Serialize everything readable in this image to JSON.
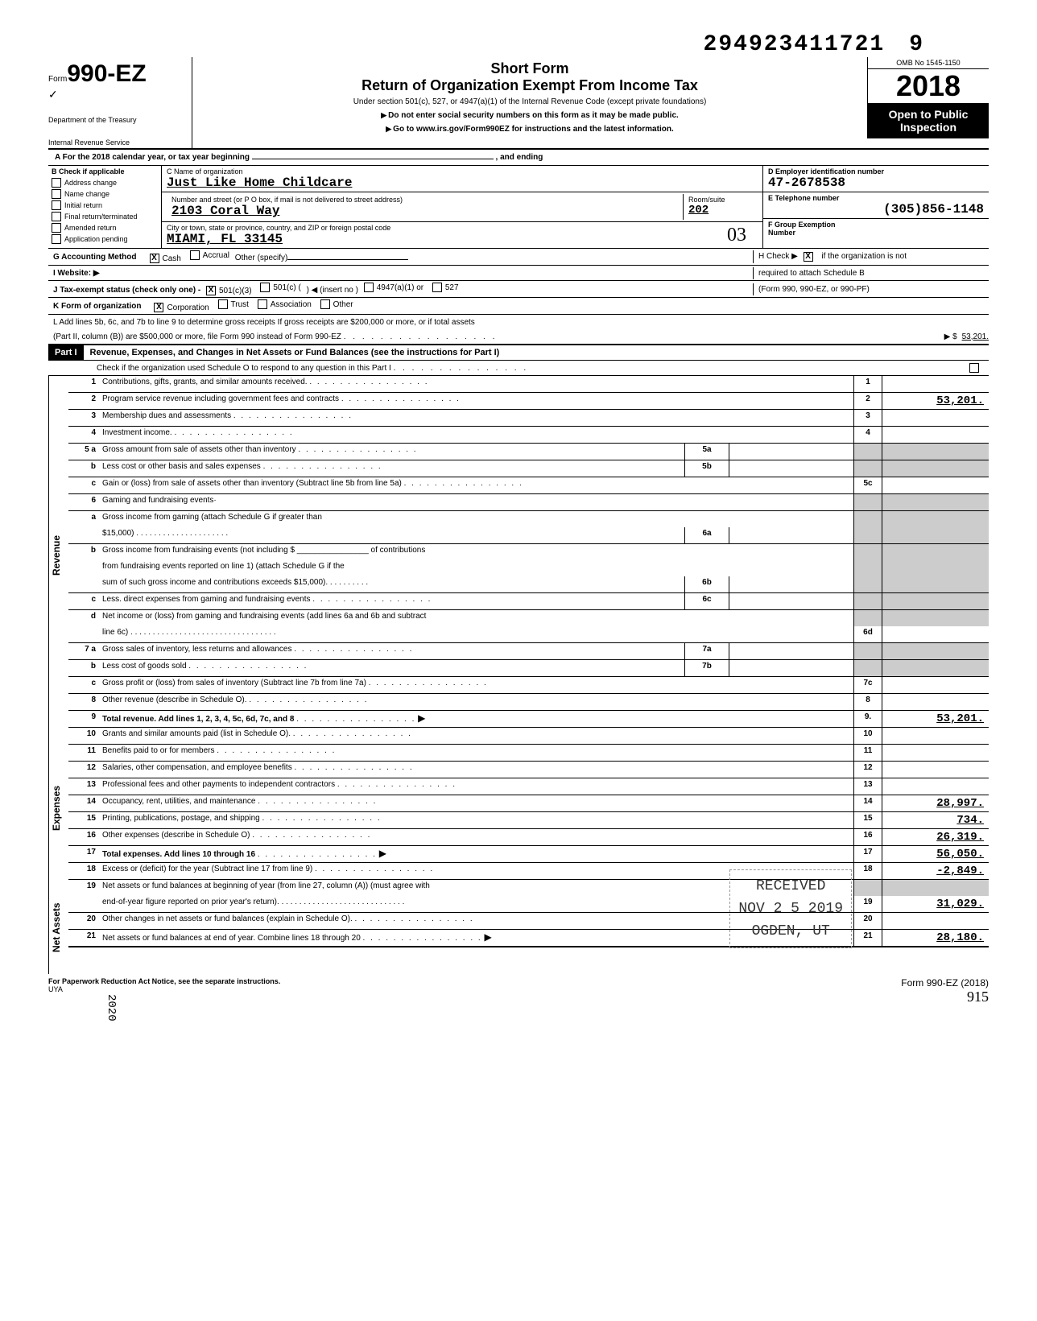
{
  "barcode": "294923411721",
  "barcode_suffix": "9",
  "form": {
    "prefix": "Form",
    "number": "990-EZ",
    "dept1": "Department of the Treasury",
    "dept2": "Internal Revenue Service"
  },
  "title": {
    "short": "Short Form",
    "main": "Return of Organization Exempt From Income Tax",
    "sub1": "Under section 501(c), 527, or 4947(a)(1) of the Internal Revenue Code (except private foundations)",
    "sub2": "Do not enter social security numbers on this form as it may be made public.",
    "sub3": "Go to www.irs.gov/Form990EZ for instructions and the latest information."
  },
  "omb": "OMB No 1545-1150",
  "year": "2018",
  "open_public1": "Open to Public",
  "open_public2": "Inspection",
  "rowA": {
    "label": "A For the 2018 calendar year, or tax year beginning",
    "and": ", and ending"
  },
  "colB": {
    "hdr": "B Check if applicable",
    "items": [
      "Address change",
      "Name change",
      "Initial return",
      "Final return/terminated",
      "Amended return",
      "Application pending"
    ]
  },
  "colC": {
    "name_label": "C  Name of organization",
    "name_value": "Just Like Home Childcare",
    "addr_label": "Number and street (or P O  box, if mail is not delivered to street address)",
    "addr_value": "2103 Coral Way",
    "room_label": "Room/suite",
    "room_value": "202",
    "city_label": "City or town, state or province, country, and ZIP or foreign postal code",
    "city_value": "MIAMI, FL 33145"
  },
  "colD": {
    "label": "D Employer identification number",
    "value": "47-2678538"
  },
  "colE": {
    "label": "E Telephone number",
    "value": "(305)856-1148"
  },
  "colF": {
    "label": "F Group Exemption",
    "label2": "Number"
  },
  "handwritten_03": "03",
  "rowG": {
    "label": "G Accounting Method",
    "cash": "Cash",
    "accrual": "Accrual",
    "other": "Other (specify)"
  },
  "rowH": {
    "label1": "H Check ▶",
    "label2": "if the organization is not",
    "label3": "required to attach Schedule B",
    "label4": "(Form 990, 990-EZ, or 990-PF)"
  },
  "rowI": {
    "label": "I  Website: ▶"
  },
  "rowJ": {
    "label": "J Tax-exempt status (check only one) -",
    "opt1": "501(c)(3)",
    "opt2": "501(c) (",
    "insert": ") ◀ (insert no )",
    "opt3": "4947(a)(1) or",
    "opt4": "527"
  },
  "rowK": {
    "label": "K Form of organization",
    "corp": "Corporation",
    "trust": "Trust",
    "assoc": "Association",
    "other": "Other"
  },
  "rowL": {
    "line1": "L Add lines 5b, 6c, and 7b to line 9 to determine gross receipts  If gross receipts are $200,000 or more, or if total assets",
    "line2": "(Part II, column (B)) are $500,000 or more, file Form 990 instead of Form 990-EZ",
    "dollar": "▶   $",
    "value": "53,201."
  },
  "part1": {
    "hdr": "Part I",
    "title": "Revenue, Expenses, and Changes in Net Assets or Fund Balances (see the instructions for Part I)",
    "check": "Check if the organization used Schedule O to respond to any question in this Part I"
  },
  "side_labels": {
    "revenue": "Revenue",
    "expenses": "Expenses",
    "netassets": "Net Assets"
  },
  "lines": {
    "l1": {
      "n": "1",
      "d": "Contributions, gifts, grants, and similar amounts received.",
      "box": "1",
      "v": ""
    },
    "l2": {
      "n": "2",
      "d": "Program service revenue including government fees and contracts",
      "box": "2",
      "v": "53,201."
    },
    "l3": {
      "n": "3",
      "d": "Membership dues and assessments",
      "box": "3",
      "v": ""
    },
    "l4": {
      "n": "4",
      "d": "Investment income.",
      "box": "4",
      "v": ""
    },
    "l5a": {
      "n": "5 a",
      "d": "Gross amount from sale of assets other than inventory",
      "ib": "5a"
    },
    "l5b": {
      "n": "b",
      "d": "Less  cost or other basis and sales expenses",
      "ib": "5b"
    },
    "l5c": {
      "n": "c",
      "d": "Gain or (loss) from sale of assets other than inventory (Subtract line 5b from line 5a)",
      "box": "5c",
      "v": ""
    },
    "l6": {
      "n": "6",
      "d": "Gaming and fundraising events·"
    },
    "l6a": {
      "n": "a",
      "d": "Gross income from gaming (attach Schedule G if greater than",
      "d2": "$15,000)",
      "ib": "6a"
    },
    "l6b": {
      "n": "b",
      "d": "Gross income from fundraising events (not including $",
      "d2": "of contributions",
      "d3": "from fundraising events reported on line 1) (attach Schedule G if the",
      "d4": "sum of such gross income and contributions exceeds $15,000).",
      "ib": "6b"
    },
    "l6c": {
      "n": "c",
      "d": "Less. direct expenses from gaming and fundraising events",
      "ib": "6c"
    },
    "l6d": {
      "n": "d",
      "d": "Net income or (loss) from gaming and fundraising events (add lines 6a and 6b and subtract",
      "d2": "line 6c) .",
      "box": "6d",
      "v": ""
    },
    "l7a": {
      "n": "7 a",
      "d": "Gross sales of inventory, less returns and allowances",
      "ib": "7a"
    },
    "l7b": {
      "n": "b",
      "d": "Less  cost of goods sold",
      "ib": "7b"
    },
    "l7c": {
      "n": "c",
      "d": "Gross profit or (loss) from sales of inventory (Subtract line 7b from line 7a)",
      "box": "7c",
      "v": ""
    },
    "l8": {
      "n": "8",
      "d": "Other revenue (describe in Schedule O).",
      "box": "8",
      "v": ""
    },
    "l9": {
      "n": "9",
      "d": "Total revenue.  Add lines 1, 2, 3, 4, 5c, 6d, 7c, and 8",
      "box": "9.",
      "v": "53,201."
    },
    "l10": {
      "n": "10",
      "d": "Grants and similar amounts paid (list in Schedule O).",
      "box": "10",
      "v": ""
    },
    "l11": {
      "n": "11",
      "d": "Benefits paid to or for members",
      "box": "11",
      "v": ""
    },
    "l12": {
      "n": "12",
      "d": "Salaries, other compensation, and employee benefits",
      "box": "12",
      "v": ""
    },
    "l13": {
      "n": "13",
      "d": "Professional fees and other payments to independent contractors",
      "box": "13",
      "v": ""
    },
    "l14": {
      "n": "14",
      "d": "Occupancy, rent, utilities, and maintenance",
      "box": "14",
      "v": "28,997."
    },
    "l15": {
      "n": "15",
      "d": "Printing, publications, postage, and shipping",
      "box": "15",
      "v": "734."
    },
    "l16": {
      "n": "16",
      "d": "Other expenses (describe in Schedule O)",
      "box": "16",
      "v": "26,319."
    },
    "l17": {
      "n": "17",
      "d": "Total expenses.  Add lines 10 through 16",
      "box": "17",
      "v": "56,050."
    },
    "l18": {
      "n": "18",
      "d": "Excess or (deficit) for the year (Subtract line 17 from line 9)",
      "box": "18",
      "v": "-2,849."
    },
    "l19": {
      "n": "19",
      "d": "Net assets or fund balances at beginning of year (from line 27, column (A)) (must agree with",
      "d2": "end-of-year figure reported on prior year's return).",
      "box": "19",
      "v": "31,029."
    },
    "l20": {
      "n": "20",
      "d": "Other changes in net assets or fund balances (explain in Schedule O).",
      "box": "20",
      "v": ""
    },
    "l21": {
      "n": "21",
      "d": "Net assets or fund balances at end of year. Combine lines 18 through 20",
      "box": "21",
      "v": "28,180."
    }
  },
  "stamp": {
    "received": "RECEIVED",
    "date": "NOV 2 5 2019",
    "ogden": "OGDEN, UT"
  },
  "footer": {
    "left": "For Paperwork Reduction Act Notice, see the separate instructions.",
    "uya": "UYA",
    "form": "Form 990-EZ (2018)",
    "hand": "915"
  },
  "date_stamp": "2020"
}
